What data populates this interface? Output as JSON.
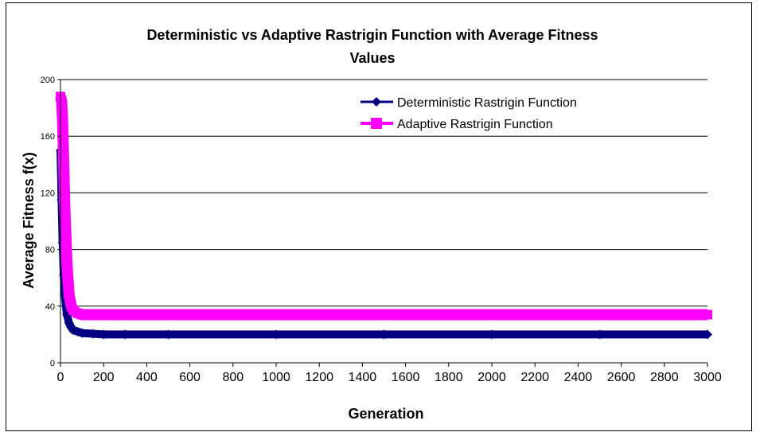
{
  "chart_data": {
    "type": "line",
    "title_line1": "Deterministic vs Adaptive Rastrigin Function with Average Fitness",
    "title_line2": "Values",
    "xlabel": "Generation",
    "ylabel": "Average Fitness f(x)",
    "xlim": [
      0,
      3000
    ],
    "ylim": [
      0,
      200
    ],
    "x_ticks": [
      "0",
      "200",
      "400",
      "600",
      "800",
      "1000",
      "1200",
      "1400",
      "1600",
      "1800",
      "2000",
      "2200",
      "2400",
      "2600",
      "2800",
      "3000"
    ],
    "y_ticks": [
      "0",
      "40",
      "80",
      "120",
      "160",
      "200"
    ],
    "grid": "horizontal",
    "legend_position": "top-right",
    "series": [
      {
        "name": "Deterministic Rastrigin Function",
        "color": "#000080",
        "marker": "diamond",
        "x": [
          0,
          5,
          10,
          15,
          20,
          30,
          40,
          50,
          60,
          80,
          100,
          150,
          200,
          300,
          500,
          1000,
          1500,
          2000,
          2500,
          3000
        ],
        "y": [
          150,
          115,
          85,
          62,
          48,
          34,
          28,
          25,
          23,
          22,
          21,
          20.5,
          20,
          20,
          20,
          20,
          20,
          20,
          20,
          20
        ]
      },
      {
        "name": "Adaptive Rastrigin Function",
        "color": "#FF00FF",
        "marker": "square",
        "x": [
          0,
          5,
          10,
          15,
          20,
          30,
          40,
          50,
          60,
          80,
          100,
          150,
          200,
          300,
          500,
          1000,
          1500,
          2000,
          2500,
          3000
        ],
        "y": [
          188,
          185,
          170,
          140,
          110,
          70,
          48,
          40,
          37,
          35,
          34,
          34,
          34,
          34,
          34,
          34,
          34,
          34,
          34,
          34
        ]
      }
    ]
  }
}
